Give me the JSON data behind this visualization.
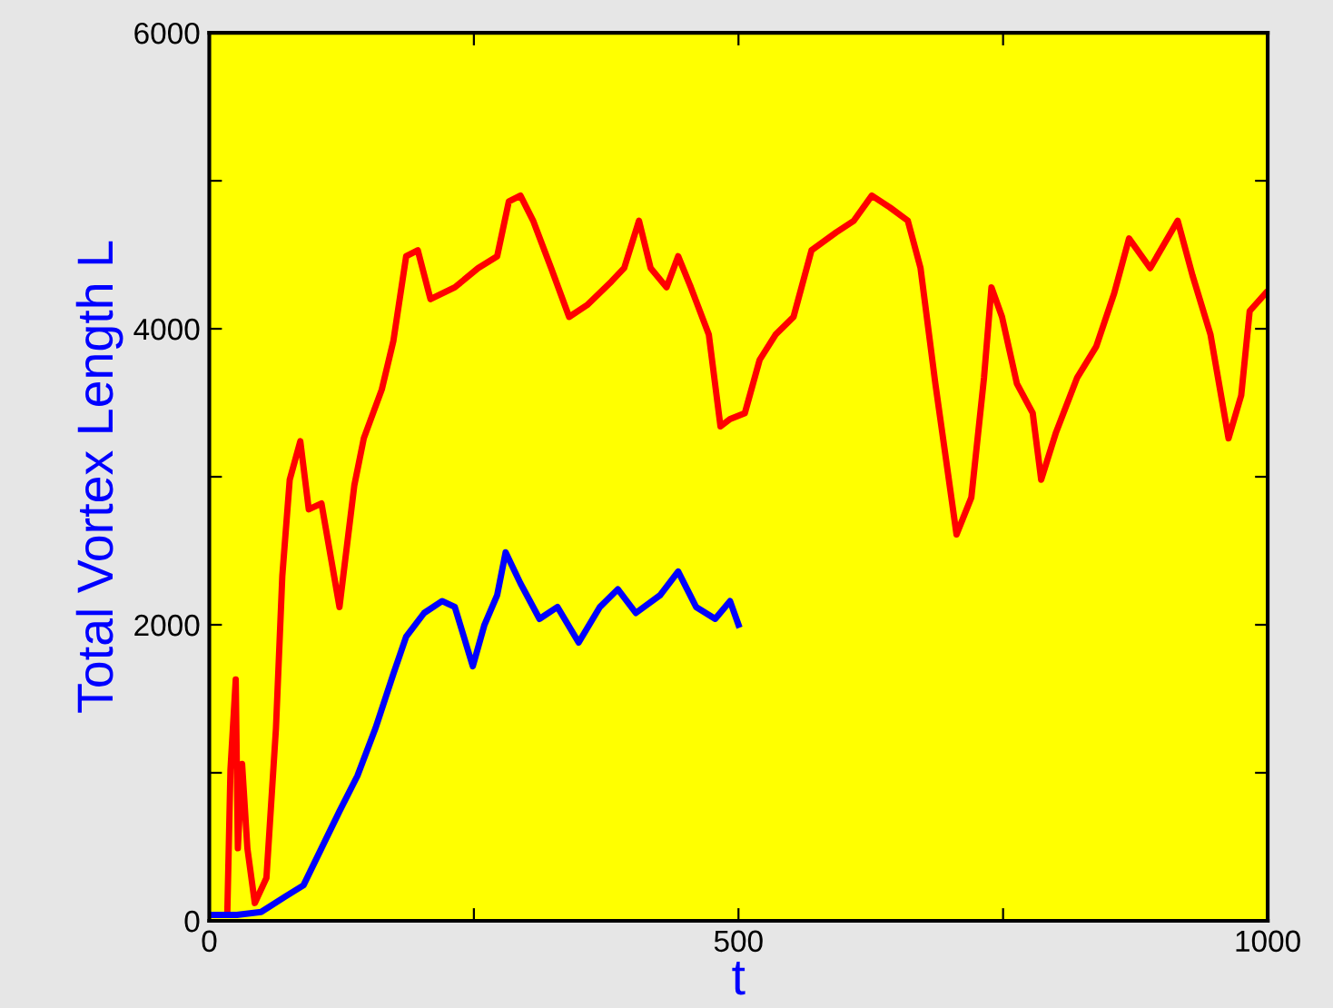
{
  "chart_data": {
    "type": "line",
    "xlabel": "t",
    "ylabel": "Total Vortex Length L",
    "xlim": [
      0,
      1000
    ],
    "ylim": [
      0,
      6000
    ],
    "xticks": [
      0,
      {
        "value": 250,
        "label": null
      },
      500,
      {
        "value": 750,
        "label": null
      },
      1000
    ],
    "yticks": [
      0,
      {
        "value": 1000,
        "label": null
      },
      2000,
      {
        "value": 3000,
        "label": null
      },
      4000,
      {
        "value": 5000,
        "label": null
      },
      6000
    ],
    "grid": false,
    "legend": false,
    "marker": "none",
    "line_style": "solid",
    "series": [
      {
        "color": "#ff0000",
        "x": [
          17,
          20,
          25,
          27,
          31,
          36,
          43,
          54,
          63,
          69,
          76,
          86,
          94,
          106,
          123,
          137,
          146,
          163,
          174,
          186,
          197,
          209,
          232,
          254,
          272,
          283,
          294,
          306,
          323,
          340,
          357,
          380,
          392,
          406,
          417,
          432,
          443,
          455,
          472,
          483,
          492,
          506,
          520,
          535,
          552,
          569,
          592,
          609,
          626,
          643,
          660,
          672,
          686,
          698,
          706,
          720,
          732,
          739,
          749,
          763,
          778,
          786,
          800,
          820,
          838,
          855,
          869,
          889,
          915,
          929,
          946,
          963,
          975,
          983,
          998
        ],
        "values": [
          40,
          1020,
          1630,
          490,
          1060,
          490,
          120,
          290,
          1300,
          2330,
          2980,
          3240,
          2780,
          2820,
          2120,
          2940,
          3260,
          3590,
          3920,
          4490,
          4530,
          4200,
          4280,
          4410,
          4490,
          4860,
          4900,
          4730,
          4410,
          4080,
          4160,
          4320,
          4410,
          4730,
          4410,
          4280,
          4490,
          4280,
          3960,
          3340,
          3390,
          3430,
          3790,
          3960,
          4080,
          4530,
          4650,
          4730,
          4900,
          4820,
          4730,
          4410,
          3630,
          3020,
          2610,
          2860,
          3670,
          4280,
          4080,
          3630,
          3430,
          2980,
          3300,
          3670,
          3880,
          4240,
          4610,
          4410,
          4730,
          4360,
          3960,
          3260,
          3550,
          4120,
          4240
        ]
      },
      {
        "color": "#0000ff",
        "x": [
          0,
          26,
          49,
          71,
          89,
          106,
          123,
          140,
          157,
          174,
          186,
          203,
          220,
          232,
          249,
          260,
          272,
          280,
          294,
          312,
          329,
          349,
          369,
          386,
          403,
          426,
          443,
          460,
          478,
          492,
          500
        ],
        "values": [
          40,
          40,
          60,
          160,
          240,
          490,
          740,
          980,
          1300,
          1670,
          1920,
          2080,
          2160,
          2120,
          1720,
          2000,
          2200,
          2490,
          2280,
          2040,
          2120,
          1880,
          2120,
          2240,
          2080,
          2200,
          2360,
          2120,
          2040,
          2160,
          2000
        ]
      }
    ]
  }
}
